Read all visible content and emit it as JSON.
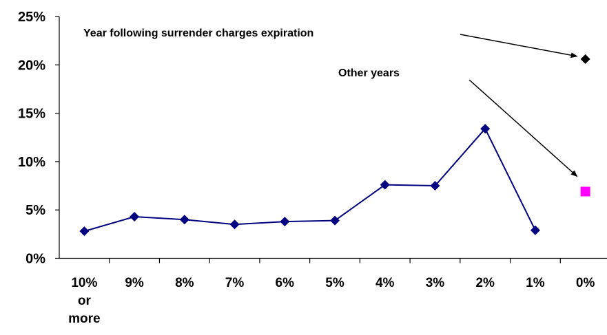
{
  "chart_data": {
    "type": "line",
    "title": "",
    "xlabel": "",
    "ylabel": "",
    "categories": [
      "10% or more",
      "9%",
      "8%",
      "7%",
      "6%",
      "5%",
      "4%",
      "3%",
      "2%",
      "1%",
      "0%"
    ],
    "category_label_lines": [
      [
        "10%",
        "or",
        "more"
      ],
      [
        "9%"
      ],
      [
        "8%"
      ],
      [
        "7%"
      ],
      [
        "6%"
      ],
      [
        "5%"
      ],
      [
        "4%"
      ],
      [
        "3%"
      ],
      [
        "2%"
      ],
      [
        "1%"
      ],
      [
        "0%"
      ]
    ],
    "ylim": [
      0,
      25
    ],
    "yticks": [
      0,
      5,
      10,
      15,
      20,
      25
    ],
    "ytick_labels": [
      "0%",
      "5%",
      "10%",
      "15%",
      "20%",
      "25%"
    ],
    "grid": false,
    "series": [
      {
        "values": [
          2.8,
          4.3,
          4.0,
          3.5,
          3.8,
          3.9,
          7.6,
          7.5,
          13.4,
          2.9,
          null
        ],
        "color": "#000080",
        "marker": "diamond",
        "line": true
      }
    ],
    "points": [
      {
        "category": "0%",
        "value": 20.6,
        "color": "#000000",
        "marker": "diamond"
      },
      {
        "category": "0%",
        "value": 6.9,
        "color": "#FF00FF",
        "marker": "square"
      }
    ],
    "annotations": [
      {
        "text": "Year following surrender charges expiration",
        "arrow_to": {
          "category": "0%",
          "value": 20.6
        }
      },
      {
        "text": "Other years",
        "arrow_to": {
          "category": "0%",
          "value": 6.9
        }
      }
    ]
  }
}
